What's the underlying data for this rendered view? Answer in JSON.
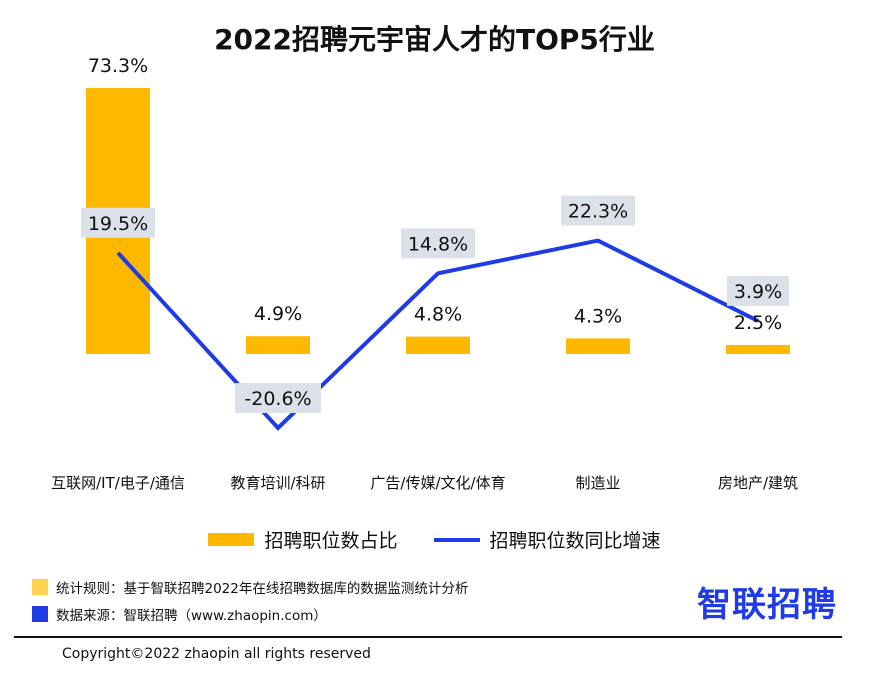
{
  "chart_data": {
    "type": "bar+line",
    "title": "2022招聘元宇宙人才的TOP5行业",
    "categories": [
      "互联网/IT/电子/通信",
      "教育培训/科研",
      "广告/传媒/文化/体育",
      "制造业",
      "房地产/建筑"
    ],
    "series": [
      {
        "name": "招聘职位数占比",
        "type": "bar",
        "values": [
          73.3,
          4.9,
          4.8,
          4.3,
          2.5
        ],
        "labels": [
          "73.3%",
          "4.9%",
          "4.8%",
          "4.3%",
          "2.5%"
        ],
        "color": "#FFB800"
      },
      {
        "name": "招聘职位数同比增速",
        "type": "line",
        "values": [
          19.5,
          -20.6,
          14.8,
          22.3,
          3.9
        ],
        "labels": [
          "19.5%",
          "-20.6%",
          "14.8%",
          "22.3%",
          "3.9%"
        ],
        "color": "#1F3BE6"
      }
    ],
    "grid": false,
    "legend": "bottom-center"
  },
  "footer": {
    "rule_note": "统计规则：基于智联招聘2022年在线招聘数据库的数据监测统计分析",
    "source_note": "数据来源：智联招聘（www.zhaopin.com）",
    "brand": "智联招聘",
    "copyright": "Copyright©2022 zhaopin all rights reserved"
  },
  "colors": {
    "bar": "#FFB800",
    "line": "#1F3BE6",
    "label_box": "#DCE0E8",
    "rule_square": "#FFD24D",
    "source_square": "#1F3BE6",
    "brand": "#1F3BE6"
  }
}
